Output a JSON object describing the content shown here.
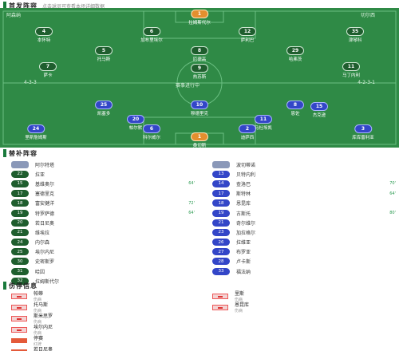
{
  "starting": {
    "title": "首发阵容",
    "subtitle": "点击球员可查看本场详细数据"
  },
  "pitch": {
    "home_tag": "阿森纳",
    "away_tag": "切尔西",
    "formation_home": "4-3-3",
    "formation_away": "4-2-3-1",
    "center_text": "赛事进行中"
  },
  "home_players": [
    {
      "num": "1",
      "name": "拉姆斯代尔",
      "role": "gk"
    },
    {
      "num": "4",
      "name": "本怀特"
    },
    {
      "num": "6",
      "name": "加布里埃尔"
    },
    {
      "num": "12",
      "name": "萨利巴"
    },
    {
      "num": "35",
      "name": "津琴科"
    },
    {
      "num": "5",
      "name": "托马斯"
    },
    {
      "num": "8",
      "name": "厄德高"
    },
    {
      "num": "29",
      "name": "哈弗茨"
    },
    {
      "num": "7",
      "name": "萨卡"
    },
    {
      "num": "9",
      "name": "热苏斯"
    },
    {
      "num": "11",
      "name": "马丁内利"
    }
  ],
  "away_players": [
    {
      "num": "1",
      "name": "桑切斯",
      "role": "gk"
    },
    {
      "num": "24",
      "name": "里斯詹姆斯"
    },
    {
      "num": "6",
      "name": "科尔威尔"
    },
    {
      "num": "2",
      "name": "迪萨西"
    },
    {
      "num": "3",
      "name": "库库雷利亚"
    },
    {
      "num": "25",
      "name": "凯塞多"
    },
    {
      "num": "8",
      "name": "恩佐"
    },
    {
      "num": "20",
      "name": "帕尔默"
    },
    {
      "num": "10",
      "name": "穆德里克"
    },
    {
      "num": "11",
      "name": "马杜埃凯"
    },
    {
      "num": "15",
      "name": "杰克逊"
    }
  ],
  "subs": {
    "title": "替补阵容",
    "home_coach": "阿尔特塔",
    "away_coach": "波切蒂诺",
    "home": [
      {
        "num": "22",
        "name": "拉亚",
        "min": ""
      },
      {
        "num": "15",
        "name": "基维奥尔",
        "min": "64'"
      },
      {
        "num": "17",
        "name": "塞德里克",
        "min": ""
      },
      {
        "num": "18",
        "name": "富安健洋",
        "min": "72'"
      },
      {
        "num": "19",
        "name": "特罗萨德",
        "min": "64'"
      },
      {
        "num": "20",
        "name": "若日尼奥",
        "min": ""
      },
      {
        "num": "21",
        "name": "维埃拉",
        "min": ""
      },
      {
        "num": "24",
        "name": "内尔森",
        "min": ""
      },
      {
        "num": "25",
        "name": "埃尔内尼",
        "min": ""
      },
      {
        "num": "30",
        "name": "史密斯罗",
        "min": ""
      },
      {
        "num": "31",
        "name": "哈因",
        "min": ""
      },
      {
        "num": "32",
        "name": "拉姆斯代尔",
        "min": ""
      }
    ],
    "away": [
      {
        "num": "13",
        "name": "贝特内利",
        "min": ""
      },
      {
        "num": "14",
        "name": "查洛巴",
        "min": "70'"
      },
      {
        "num": "17",
        "name": "斯特林",
        "min": "64'"
      },
      {
        "num": "18",
        "name": "恩昆库",
        "min": ""
      },
      {
        "num": "19",
        "name": "古斯托",
        "min": "80'"
      },
      {
        "num": "21",
        "name": "奇尔维尔",
        "min": ""
      },
      {
        "num": "23",
        "name": "加拉格尔",
        "min": ""
      },
      {
        "num": "26",
        "name": "拉维亚",
        "min": ""
      },
      {
        "num": "27",
        "name": "布罗亚",
        "min": ""
      },
      {
        "num": "28",
        "name": "卢卡斯",
        "min": ""
      },
      {
        "num": "33",
        "name": "福法纳",
        "min": ""
      }
    ]
  },
  "absent": {
    "title": "伤停信息",
    "home": [
      {
        "name": "帕蒂",
        "note": "伤病",
        "kind": "injury"
      },
      {
        "name": "托马斯",
        "note": "伤病",
        "kind": "injury"
      },
      {
        "name": "斯米思罗",
        "note": "伤病",
        "kind": "injury"
      },
      {
        "name": "埃尔内尼",
        "note": "伤病",
        "kind": "injury"
      },
      {
        "name": "停赛",
        "note": "红牌",
        "kind": "red"
      },
      {
        "name": "若日尼奥",
        "note": "停赛",
        "kind": "red"
      }
    ],
    "away": [
      {
        "name": "里斯",
        "note": "伤病",
        "kind": "injury"
      },
      {
        "name": "恩昆库",
        "note": "伤病",
        "kind": "injury"
      }
    ]
  }
}
